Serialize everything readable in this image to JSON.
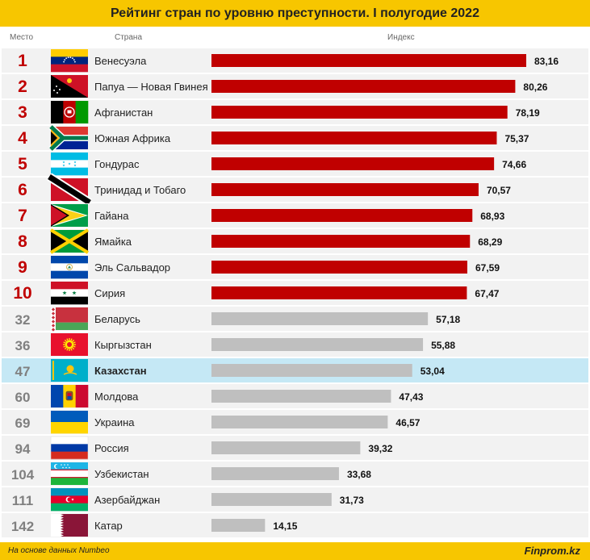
{
  "title": "Рейтинг стран по уровню преступности. I полугодие 2022",
  "headers": {
    "rank": "Место",
    "country": "Страна",
    "index": "Индекс"
  },
  "footer": {
    "source": "На основе данных Numbeo",
    "brand": "Finprom.kz"
  },
  "colors": {
    "top10": "#c00000",
    "other": "#bfbfbf",
    "highlight": "#c5e8f5",
    "accent": "#f7c600",
    "rank_top": "#c00000",
    "rank_other": "#808080"
  },
  "chart_data": {
    "type": "bar",
    "orientation": "horizontal",
    "highlight": "Казахстан",
    "xlim": [
      0,
      90
    ],
    "rows": [
      {
        "rank": "1",
        "country": "Венесуэла",
        "value": 83.16,
        "label": "83,16",
        "flag": "venezuela"
      },
      {
        "rank": "2",
        "country": "Папуа — Новая Гвинея",
        "value": 80.26,
        "label": "80,26",
        "flag": "papua-new-guinea"
      },
      {
        "rank": "3",
        "country": "Афганистан",
        "value": 78.19,
        "label": "78,19",
        "flag": "afghanistan"
      },
      {
        "rank": "4",
        "country": "Южная Африка",
        "value": 75.37,
        "label": "75,37",
        "flag": "south-africa"
      },
      {
        "rank": "5",
        "country": "Гондурас",
        "value": 74.66,
        "label": "74,66",
        "flag": "honduras"
      },
      {
        "rank": "6",
        "country": "Тринидад и Тобаго",
        "value": 70.57,
        "label": "70,57",
        "flag": "trinidad-and-tobago"
      },
      {
        "rank": "7",
        "country": "Гайана",
        "value": 68.93,
        "label": "68,93",
        "flag": "guyana"
      },
      {
        "rank": "8",
        "country": "Ямайка",
        "value": 68.29,
        "label": "68,29",
        "flag": "jamaica"
      },
      {
        "rank": "9",
        "country": "Эль Сальвадор",
        "value": 67.59,
        "label": "67,59",
        "flag": "el-salvador"
      },
      {
        "rank": "10",
        "country": "Сирия",
        "value": 67.47,
        "label": "67,47",
        "flag": "syria"
      },
      {
        "rank": "32",
        "country": "Беларусь",
        "value": 57.18,
        "label": "57,18",
        "flag": "belarus"
      },
      {
        "rank": "36",
        "country": "Кыргызстан",
        "value": 55.88,
        "label": "55,88",
        "flag": "kyrgyzstan"
      },
      {
        "rank": "47",
        "country": "Казахстан",
        "value": 53.04,
        "label": "53,04",
        "flag": "kazakhstan"
      },
      {
        "rank": "60",
        "country": "Молдова",
        "value": 47.43,
        "label": "47,43",
        "flag": "moldova"
      },
      {
        "rank": "69",
        "country": "Украина",
        "value": 46.57,
        "label": "46,57",
        "flag": "ukraine"
      },
      {
        "rank": "94",
        "country": "Россия",
        "value": 39.32,
        "label": "39,32",
        "flag": "russia"
      },
      {
        "rank": "104",
        "country": "Узбекистан",
        "value": 33.68,
        "label": "33,68",
        "flag": "uzbekistan"
      },
      {
        "rank": "111",
        "country": "Азербайджан",
        "value": 31.73,
        "label": "31,73",
        "flag": "azerbaijan"
      },
      {
        "rank": "142",
        "country": "Катар",
        "value": 14.15,
        "label": "14,15",
        "flag": "qatar"
      }
    ]
  }
}
